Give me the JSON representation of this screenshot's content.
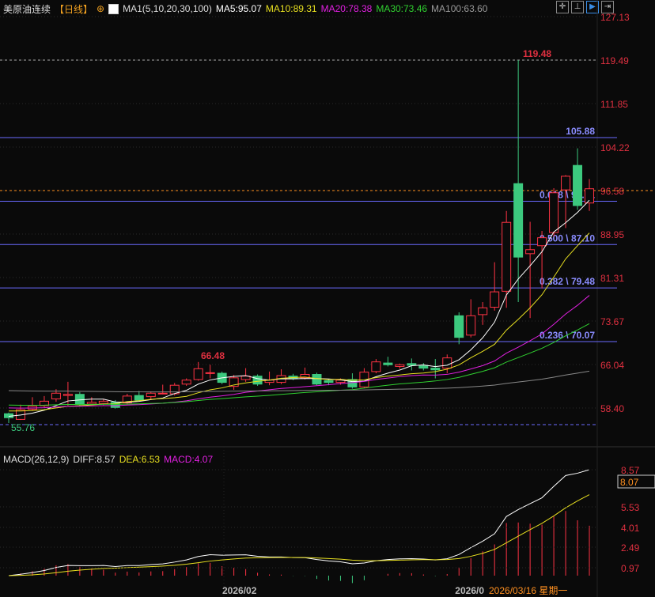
{
  "header": {
    "symbol": "美原油连续",
    "period": "【日线】",
    "ma_label": "MA1(5,10,20,30,100)",
    "ma5": "MA5:95.07",
    "ma10": "MA10:89.31",
    "ma20": "MA20:78.38",
    "ma30": "MA30:73.46",
    "ma100": "MA100:63.60"
  },
  "toolbar": [
    "crosshair-icon",
    "period-icon",
    "play-icon",
    "exit-icon"
  ],
  "colors": {
    "up": "#ff3344",
    "down": "#3cc97e",
    "ma5": "#ffffff",
    "ma10": "#e8e020",
    "ma20": "#e020e0",
    "ma30": "#30d030",
    "ma100": "#888888",
    "fib": "#7070ff"
  },
  "price_axis": [
    "127.13",
    "119.49",
    "111.85",
    "104.22",
    "96.58",
    "88.95",
    "81.31",
    "73.67",
    "66.04",
    "58.40"
  ],
  "levels": {
    "high": "119.48",
    "low": "55.76",
    "local_high": "66.48",
    "top_fib": "105.88",
    "current": "96.58"
  },
  "fib": [
    {
      "label": "0.618 \\ 94.71",
      "value": 94.71
    },
    {
      "label": "0.500 \\ 87.10",
      "value": 87.1
    },
    {
      "label": "0.382 \\ 79.48",
      "value": 79.48
    },
    {
      "label": "0.236 \\ 70.07",
      "value": 70.07
    }
  ],
  "candles": [
    [
      57.4,
      57.6,
      55.76,
      56.7
    ],
    [
      56.4,
      59,
      56.3,
      58.1
    ],
    [
      58.2,
      60.3,
      58,
      58.7
    ],
    [
      58.8,
      60.5,
      58.5,
      59.6
    ],
    [
      60,
      61.7,
      59.5,
      61
    ],
    [
      60.6,
      63,
      58.8,
      60.8
    ],
    [
      60.8,
      61.2,
      58.8,
      59
    ],
    [
      59.1,
      60.3,
      58.9,
      59.4
    ],
    [
      59.2,
      60,
      58.9,
      59.6
    ],
    [
      59.4,
      59.8,
      58.3,
      58.5
    ],
    [
      59.3,
      60.9,
      59,
      60.5
    ],
    [
      60.6,
      61.4,
      59.6,
      59.8
    ],
    [
      60.4,
      61.3,
      60,
      61
    ],
    [
      61,
      62.5,
      60.8,
      61
    ],
    [
      60.9,
      62.8,
      60.6,
      62.4
    ],
    [
      62.6,
      63.6,
      62.3,
      63.3
    ],
    [
      63.4,
      66.48,
      63.2,
      65.3
    ],
    [
      64.6,
      66,
      63.6,
      64.6
    ],
    [
      64.5,
      64.8,
      62.6,
      62.9
    ],
    [
      62.2,
      64.2,
      61.6,
      63.7
    ],
    [
      63.4,
      65.4,
      63,
      64
    ],
    [
      64,
      64.3,
      62.3,
      62.6
    ],
    [
      62.9,
      64.8,
      62.4,
      63.3
    ],
    [
      62.9,
      65.2,
      62.6,
      64.1
    ],
    [
      64,
      64.4,
      63.3,
      63.6
    ],
    [
      63.7,
      65.5,
      63.4,
      64.3
    ],
    [
      64.3,
      64.6,
      62.4,
      62.6
    ],
    [
      63.2,
      63.4,
      62.4,
      62.9
    ],
    [
      62.9,
      63.6,
      62.5,
      63.3
    ],
    [
      63.4,
      64.5,
      61.8,
      62.1
    ],
    [
      62.1,
      65.4,
      61.9,
      64.7
    ],
    [
      64.8,
      67,
      64.5,
      66.5
    ],
    [
      66.3,
      67.4,
      65.7,
      66
    ],
    [
      65.7,
      66.2,
      65.3,
      66
    ],
    [
      66.2,
      67.1,
      65,
      65.9
    ],
    [
      65.8,
      66.3,
      65,
      65.4
    ],
    [
      65.4,
      67,
      63.6,
      65.1
    ],
    [
      65.4,
      67.8,
      64.5,
      67.2
    ],
    [
      74.6,
      75.2,
      69.6,
      70.8
    ],
    [
      71.2,
      77.5,
      70.8,
      74.6
    ],
    [
      74.8,
      77,
      73,
      76
    ],
    [
      76.1,
      84,
      75.5,
      78.8
    ],
    [
      78.9,
      93,
      76,
      91
    ],
    [
      97.8,
      119.48,
      77,
      84.9
    ],
    [
      85.5,
      91.1,
      74.2,
      86.2
    ],
    [
      86.9,
      89.5,
      79.4,
      88.3
    ],
    [
      89.2,
      97,
      88.5,
      96.2
    ],
    [
      96.7,
      99.3,
      90,
      99.1
    ],
    [
      101,
      104,
      93.2,
      93.95
    ],
    [
      94.4,
      98.6,
      93,
      96.9
    ]
  ],
  "macd": {
    "label": "MACD(26,12,9)",
    "diff": "DIFF:8.57",
    "dea": "DEA:6.53",
    "macd": "MACD:4.07",
    "axis": [
      "8.57",
      "5.53",
      "4.01",
      "2.49",
      "0.97"
    ],
    "current": "8.07"
  },
  "time_axis": {
    "feb": "2026/02",
    "mar": "2026/0",
    "cursor": "2026/03/16 星期一"
  }
}
